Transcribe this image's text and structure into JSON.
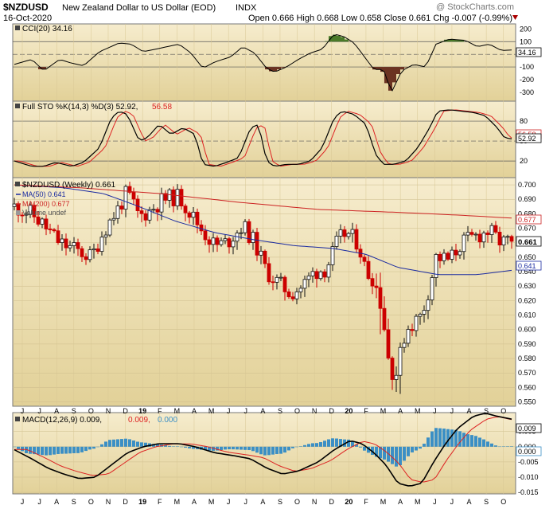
{
  "header": {
    "symbol": "$NZDUSD",
    "name": "New Zealand Dollar to US Dollar (EOD)",
    "exchange": "INDX",
    "date": "16-Oct-2020",
    "copyright": "@ StockCharts.com",
    "ohlc": "Open 0.666  High 0.668  Low 0.658  Close 0.661  Chg -0.007 (-0.99%)"
  },
  "panels": {
    "cci": {
      "label": "CCI(20) 34.16",
      "last_badge": "34.16",
      "ticks": [
        "200",
        "100",
        "0",
        "-100",
        "-200",
        "-300"
      ]
    },
    "sto": {
      "label": "Full STO %K(14,3) %D(3) 52.92,",
      "label_d": "56.58",
      "badge_k": "52.92",
      "badge_d": "56.58",
      "ticks": [
        "80",
        "50",
        "20"
      ]
    },
    "price": {
      "label": "$NZDUSD (Weekly) 0.661",
      "ma50_label": "MA(50) 0.641",
      "ma200_label": "MA(200) 0.677",
      "volume_label": "Volume undef",
      "badges": {
        "ma200": "0.677",
        "last": "0.661",
        "ma50": "0.641"
      },
      "ticks": [
        "0.700",
        "0.690",
        "0.680",
        "0.670",
        "0.660",
        "0.650",
        "0.640",
        "0.630",
        "0.620",
        "0.610",
        "0.600",
        "0.590",
        "0.580",
        "0.570",
        "0.560",
        "0.550"
      ]
    },
    "macd": {
      "label": "MACD(12,26,9) 0.009,",
      "label_signal": "0.009,",
      "label_hist": "0.000",
      "badges": {
        "macd": "0.009",
        "hist": "0.000"
      },
      "ticks": [
        "0.005",
        "0.000",
        "-0.005",
        "-0.010",
        "-0.015"
      ]
    }
  },
  "xaxis": [
    "J",
    "J",
    "A",
    "S",
    "O",
    "N",
    "D",
    "19",
    "F",
    "M",
    "A",
    "M",
    "J",
    "J",
    "A",
    "S",
    "O",
    "N",
    "D",
    "20",
    "F",
    "M",
    "A",
    "M",
    "J",
    "J",
    "A",
    "S",
    "O"
  ],
  "colors": {
    "up": "#111111",
    "down": "#cc0000",
    "ma50": "#1a2aa0",
    "ma200": "#cc2222",
    "sto_d": "#dd2222",
    "macd_hist": "#3b8fc5",
    "cci_pos": "#4a7a28",
    "cci_neg": "#6b3322"
  },
  "chart_data": {
    "type": "candlestick",
    "frequency": "weekly",
    "range": [
      "2018-06",
      "2020-10-16"
    ],
    "price": {
      "ylim": [
        0.55,
        0.7
      ],
      "last": {
        "open": 0.666,
        "high": 0.668,
        "low": 0.658,
        "close": 0.661
      },
      "ma50_last": 0.641,
      "ma200_last": 0.677,
      "approx_path": [
        {
          "t": "2018-06",
          "close": 0.685
        },
        {
          "t": "2018-07",
          "close": 0.678
        },
        {
          "t": "2018-08",
          "close": 0.665
        },
        {
          "t": "2018-09",
          "close": 0.655
        },
        {
          "t": "2018-10",
          "close": 0.65
        },
        {
          "t": "2018-11",
          "close": 0.678
        },
        {
          "t": "2018-12",
          "close": 0.69
        },
        {
          "t": "2019-01",
          "close": 0.678
        },
        {
          "t": "2019-02",
          "close": 0.685
        },
        {
          "t": "2019-03",
          "close": 0.69
        },
        {
          "t": "2019-04",
          "close": 0.672
        },
        {
          "t": "2019-05",
          "close": 0.655
        },
        {
          "t": "2019-06",
          "close": 0.66
        },
        {
          "t": "2019-07",
          "close": 0.672
        },
        {
          "t": "2019-08",
          "close": 0.64
        },
        {
          "t": "2019-09",
          "close": 0.63
        },
        {
          "t": "2019-10",
          "close": 0.64
        },
        {
          "t": "2019-11",
          "close": 0.642
        },
        {
          "t": "2019-12",
          "close": 0.66
        },
        {
          "t": "2020-01",
          "close": 0.665
        },
        {
          "t": "2020-02",
          "close": 0.64
        },
        {
          "t": "2020-03",
          "close": 0.575
        },
        {
          "t": "2020-04",
          "close": 0.6
        },
        {
          "t": "2020-05",
          "close": 0.61
        },
        {
          "t": "2020-06",
          "close": 0.648
        },
        {
          "t": "2020-07",
          "close": 0.66
        },
        {
          "t": "2020-08",
          "close": 0.665
        },
        {
          "t": "2020-09",
          "close": 0.66
        },
        {
          "t": "2020-10",
          "close": 0.661
        }
      ]
    },
    "cci": {
      "last": 34.16,
      "ylim": [
        -300,
        200
      ]
    },
    "stochastic": {
      "k_last": 52.92,
      "d_last": 56.58,
      "ylim": [
        0,
        100
      ]
    },
    "macd": {
      "macd_last": 0.009,
      "signal_last": 0.009,
      "hist_last": 0.0,
      "ylim": [
        -0.015,
        0.01
      ]
    }
  }
}
